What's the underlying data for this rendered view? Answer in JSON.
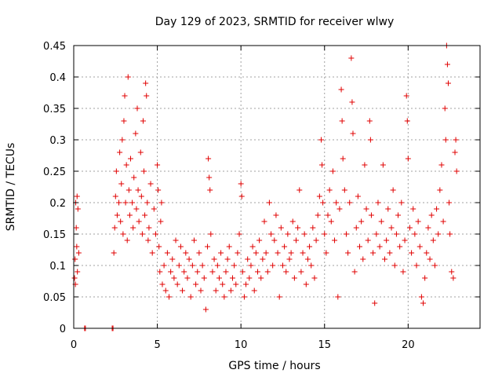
{
  "chart_data": {
    "type": "scatter",
    "title": "Day 129 of 2023, SRMTID for receiver wlwy",
    "xlabel": "GPS time / hours",
    "ylabel": "SRMTID / TECUs",
    "xlim": [
      0,
      24.3
    ],
    "ylim": [
      0,
      0.45
    ],
    "x_ticks": [
      0,
      5,
      10,
      15,
      20
    ],
    "x_tick_labels": [
      "0",
      "5",
      "10",
      "15",
      "20"
    ],
    "y_ticks": [
      0,
      0.05,
      0.1,
      0.15,
      0.2,
      0.25,
      0.3,
      0.35,
      0.4,
      0.45
    ],
    "y_tick_labels": [
      "0",
      "0.05",
      "0.1",
      "0.15",
      "0.2",
      "0.25",
      "0.3",
      "0.35",
      "0.4",
      "0.45"
    ],
    "grid": true,
    "marker": "plus",
    "color": "#e00000",
    "series": [
      {
        "name": "SRMTID",
        "points": [
          [
            0.05,
            0.08
          ],
          [
            0.08,
            0.11
          ],
          [
            0.1,
            0.07
          ],
          [
            0.12,
            0.2
          ],
          [
            0.15,
            0.16
          ],
          [
            0.18,
            0.13
          ],
          [
            0.2,
            0.21
          ],
          [
            0.22,
            0.09
          ],
          [
            0.25,
            0.19
          ],
          [
            0.3,
            0.12
          ],
          [
            0.65,
            0.0
          ],
          [
            0.7,
            0.0
          ],
          [
            2.3,
            0.0
          ],
          [
            2.35,
            0.0
          ],
          [
            2.4,
            0.12
          ],
          [
            2.45,
            0.16
          ],
          [
            2.5,
            0.21
          ],
          [
            2.55,
            0.25
          ],
          [
            2.6,
            0.18
          ],
          [
            2.7,
            0.2
          ],
          [
            2.75,
            0.28
          ],
          [
            2.8,
            0.17
          ],
          [
            2.85,
            0.23
          ],
          [
            2.9,
            0.3
          ],
          [
            2.95,
            0.15
          ],
          [
            3.0,
            0.33
          ],
          [
            3.05,
            0.37
          ],
          [
            3.1,
            0.2
          ],
          [
            3.15,
            0.26
          ],
          [
            3.2,
            0.14
          ],
          [
            3.25,
            0.4
          ],
          [
            3.3,
            0.22
          ],
          [
            3.35,
            0.18
          ],
          [
            3.4,
            0.27
          ],
          [
            3.5,
            0.2
          ],
          [
            3.55,
            0.16
          ],
          [
            3.6,
            0.24
          ],
          [
            3.7,
            0.31
          ],
          [
            3.75,
            0.19
          ],
          [
            3.8,
            0.35
          ],
          [
            3.85,
            0.22
          ],
          [
            3.9,
            0.17
          ],
          [
            4.0,
            0.28
          ],
          [
            4.05,
            0.21
          ],
          [
            4.1,
            0.15
          ],
          [
            4.15,
            0.33
          ],
          [
            4.2,
            0.25
          ],
          [
            4.25,
            0.18
          ],
          [
            4.3,
            0.39
          ],
          [
            4.35,
            0.37
          ],
          [
            4.4,
            0.2
          ],
          [
            4.45,
            0.14
          ],
          [
            4.5,
            0.16
          ],
          [
            4.6,
            0.23
          ],
          [
            4.7,
            0.12
          ],
          [
            4.8,
            0.19
          ],
          [
            4.9,
            0.15
          ],
          [
            5.0,
            0.26
          ],
          [
            5.05,
            0.22
          ],
          [
            5.1,
            0.13
          ],
          [
            5.15,
            0.09
          ],
          [
            5.2,
            0.17
          ],
          [
            5.25,
            0.2
          ],
          [
            5.3,
            0.07
          ],
          [
            5.4,
            0.1
          ],
          [
            5.5,
            0.06
          ],
          [
            5.6,
            0.12
          ],
          [
            5.7,
            0.05
          ],
          [
            5.8,
            0.09
          ],
          [
            5.9,
            0.11
          ],
          [
            6.0,
            0.08
          ],
          [
            6.1,
            0.14
          ],
          [
            6.2,
            0.07
          ],
          [
            6.3,
            0.1
          ],
          [
            6.4,
            0.13
          ],
          [
            6.5,
            0.06
          ],
          [
            6.6,
            0.09
          ],
          [
            6.7,
            0.12
          ],
          [
            6.8,
            0.08
          ],
          [
            6.9,
            0.11
          ],
          [
            7.0,
            0.05
          ],
          [
            7.1,
            0.1
          ],
          [
            7.2,
            0.14
          ],
          [
            7.3,
            0.07
          ],
          [
            7.4,
            0.09
          ],
          [
            7.5,
            0.12
          ],
          [
            7.6,
            0.06
          ],
          [
            7.7,
            0.1
          ],
          [
            7.8,
            0.08
          ],
          [
            7.9,
            0.03
          ],
          [
            8.0,
            0.13
          ],
          [
            8.05,
            0.27
          ],
          [
            8.1,
            0.24
          ],
          [
            8.15,
            0.22
          ],
          [
            8.2,
            0.15
          ],
          [
            8.3,
            0.09
          ],
          [
            8.4,
            0.11
          ],
          [
            8.5,
            0.06
          ],
          [
            8.6,
            0.1
          ],
          [
            8.7,
            0.08
          ],
          [
            8.8,
            0.12
          ],
          [
            8.9,
            0.07
          ],
          [
            9.0,
            0.05
          ],
          [
            9.1,
            0.09
          ],
          [
            9.2,
            0.11
          ],
          [
            9.3,
            0.13
          ],
          [
            9.4,
            0.06
          ],
          [
            9.5,
            0.08
          ],
          [
            9.6,
            0.1
          ],
          [
            9.7,
            0.07
          ],
          [
            9.8,
            0.12
          ],
          [
            9.9,
            0.15
          ],
          [
            10.0,
            0.23
          ],
          [
            10.05,
            0.21
          ],
          [
            10.1,
            0.09
          ],
          [
            10.2,
            0.05
          ],
          [
            10.3,
            0.07
          ],
          [
            10.4,
            0.11
          ],
          [
            10.5,
            0.08
          ],
          [
            10.6,
            0.1
          ],
          [
            10.7,
            0.13
          ],
          [
            10.8,
            0.06
          ],
          [
            10.9,
            0.12
          ],
          [
            11.0,
            0.09
          ],
          [
            11.1,
            0.14
          ],
          [
            11.2,
            0.08
          ],
          [
            11.3,
            0.11
          ],
          [
            11.4,
            0.17
          ],
          [
            11.5,
            0.12
          ],
          [
            11.6,
            0.09
          ],
          [
            11.7,
            0.2
          ],
          [
            11.8,
            0.15
          ],
          [
            11.9,
            0.1
          ],
          [
            12.0,
            0.14
          ],
          [
            12.1,
            0.18
          ],
          [
            12.2,
            0.12
          ],
          [
            12.3,
            0.05
          ],
          [
            12.4,
            0.16
          ],
          [
            12.5,
            0.1
          ],
          [
            12.6,
            0.13
          ],
          [
            12.7,
            0.09
          ],
          [
            12.8,
            0.15
          ],
          [
            12.9,
            0.11
          ],
          [
            13.0,
            0.12
          ],
          [
            13.1,
            0.17
          ],
          [
            13.2,
            0.08
          ],
          [
            13.3,
            0.14
          ],
          [
            13.4,
            0.16
          ],
          [
            13.5,
            0.22
          ],
          [
            13.6,
            0.09
          ],
          [
            13.7,
            0.12
          ],
          [
            13.8,
            0.15
          ],
          [
            13.9,
            0.07
          ],
          [
            14.0,
            0.11
          ],
          [
            14.1,
            0.13
          ],
          [
            14.2,
            0.1
          ],
          [
            14.3,
            0.16
          ],
          [
            14.4,
            0.08
          ],
          [
            14.5,
            0.14
          ],
          [
            14.6,
            0.18
          ],
          [
            14.7,
            0.21
          ],
          [
            14.8,
            0.3
          ],
          [
            14.85,
            0.26
          ],
          [
            14.9,
            0.2
          ],
          [
            15.0,
            0.15
          ],
          [
            15.1,
            0.12
          ],
          [
            15.2,
            0.18
          ],
          [
            15.3,
            0.22
          ],
          [
            15.4,
            0.17
          ],
          [
            15.5,
            0.25
          ],
          [
            15.6,
            0.14
          ],
          [
            15.7,
            0.2
          ],
          [
            15.8,
            0.05
          ],
          [
            15.9,
            0.19
          ],
          [
            16.0,
            0.38
          ],
          [
            16.05,
            0.33
          ],
          [
            16.1,
            0.27
          ],
          [
            16.2,
            0.22
          ],
          [
            16.3,
            0.15
          ],
          [
            16.4,
            0.12
          ],
          [
            16.5,
            0.2
          ],
          [
            16.6,
            0.43
          ],
          [
            16.65,
            0.36
          ],
          [
            16.7,
            0.31
          ],
          [
            16.8,
            0.09
          ],
          [
            16.9,
            0.16
          ],
          [
            17.0,
            0.21
          ],
          [
            17.1,
            0.13
          ],
          [
            17.2,
            0.17
          ],
          [
            17.3,
            0.11
          ],
          [
            17.4,
            0.26
          ],
          [
            17.5,
            0.19
          ],
          [
            17.6,
            0.14
          ],
          [
            17.7,
            0.33
          ],
          [
            17.75,
            0.3
          ],
          [
            17.8,
            0.18
          ],
          [
            17.9,
            0.12
          ],
          [
            18.0,
            0.04
          ],
          [
            18.1,
            0.15
          ],
          [
            18.2,
            0.2
          ],
          [
            18.3,
            0.13
          ],
          [
            18.4,
            0.17
          ],
          [
            18.5,
            0.26
          ],
          [
            18.6,
            0.11
          ],
          [
            18.7,
            0.14
          ],
          [
            18.8,
            0.19
          ],
          [
            18.9,
            0.12
          ],
          [
            19.0,
            0.16
          ],
          [
            19.1,
            0.22
          ],
          [
            19.2,
            0.1
          ],
          [
            19.3,
            0.15
          ],
          [
            19.4,
            0.18
          ],
          [
            19.5,
            0.13
          ],
          [
            19.6,
            0.2
          ],
          [
            19.7,
            0.09
          ],
          [
            19.8,
            0.14
          ],
          [
            19.9,
            0.37
          ],
          [
            19.95,
            0.33
          ],
          [
            20.0,
            0.27
          ],
          [
            20.1,
            0.16
          ],
          [
            20.2,
            0.12
          ],
          [
            20.3,
            0.19
          ],
          [
            20.4,
            0.15
          ],
          [
            20.5,
            0.1
          ],
          [
            20.6,
            0.17
          ],
          [
            20.7,
            0.13
          ],
          [
            20.8,
            0.05
          ],
          [
            20.9,
            0.04
          ],
          [
            21.0,
            0.08
          ],
          [
            21.1,
            0.12
          ],
          [
            21.2,
            0.16
          ],
          [
            21.3,
            0.11
          ],
          [
            21.4,
            0.18
          ],
          [
            21.5,
            0.14
          ],
          [
            21.6,
            0.1
          ],
          [
            21.7,
            0.19
          ],
          [
            21.8,
            0.15
          ],
          [
            21.9,
            0.22
          ],
          [
            22.0,
            0.26
          ],
          [
            22.1,
            0.17
          ],
          [
            22.2,
            0.35
          ],
          [
            22.25,
            0.3
          ],
          [
            22.3,
            0.45
          ],
          [
            22.35,
            0.42
          ],
          [
            22.4,
            0.39
          ],
          [
            22.45,
            0.2
          ],
          [
            22.5,
            0.15
          ],
          [
            22.6,
            0.09
          ],
          [
            22.7,
            0.08
          ],
          [
            22.8,
            0.28
          ],
          [
            22.85,
            0.3
          ],
          [
            22.9,
            0.25
          ]
        ]
      }
    ]
  }
}
